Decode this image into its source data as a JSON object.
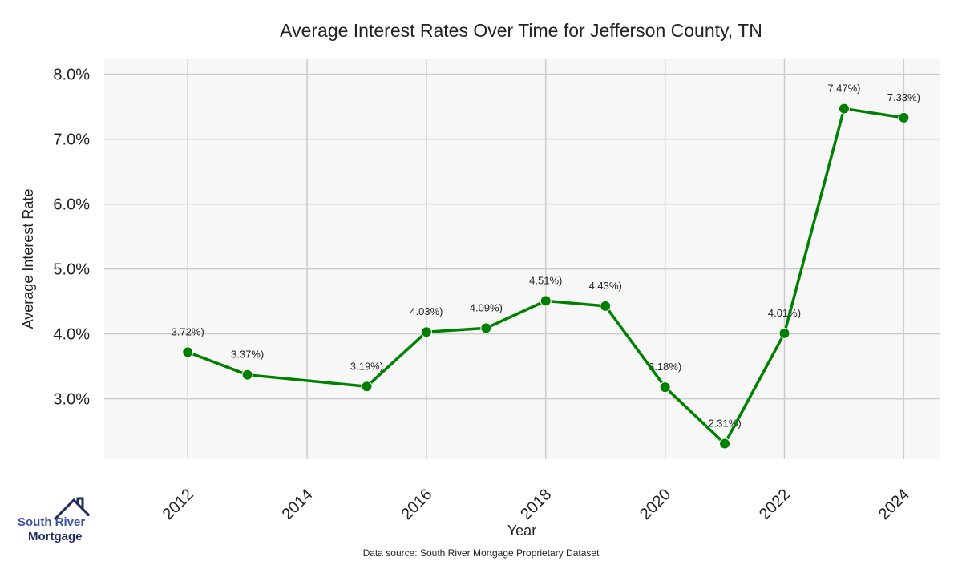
{
  "chart_data": {
    "type": "line",
    "title": "Average Interest Rates Over Time for Jefferson County, TN",
    "xlabel": "Year",
    "ylabel": "Average Interest Rate",
    "x": [
      2012,
      2013,
      2015,
      2016,
      2017,
      2018,
      2019,
      2020,
      2021,
      2022,
      2023,
      2024
    ],
    "values": [
      3.72,
      3.37,
      3.19,
      4.03,
      4.09,
      4.51,
      4.43,
      3.18,
      2.31,
      4.01,
      7.47,
      7.33
    ],
    "data_labels": [
      "3.72%)",
      "3.37%)",
      "3.19%)",
      "4.03%)",
      "4.09%)",
      "4.51%)",
      "4.43%)",
      "3.18%)",
      "2.31%)",
      "4.01%)",
      "7.47%)",
      "7.33%)"
    ],
    "xticks": [
      "2012",
      "2014",
      "2016",
      "2018",
      "2020",
      "2022",
      "2024"
    ],
    "xtick_values": [
      2012,
      2014,
      2016,
      2018,
      2020,
      2022,
      2024
    ],
    "yticks": [
      "3.0%",
      "4.0%",
      "5.0%",
      "6.0%",
      "7.0%",
      "8.0%"
    ],
    "ytick_values": [
      3,
      4,
      5,
      6,
      7,
      8
    ],
    "xlim": [
      2010.6,
      2024.6
    ],
    "ylim": [
      2.07,
      8.23
    ],
    "grid": true,
    "line_color": "#008000",
    "background_color": "#f7f7f7"
  },
  "footer": {
    "source": "Data source: South River Mortgage Proprietary Dataset"
  },
  "logo": {
    "line1": "South River",
    "line2": "Mortgage"
  }
}
